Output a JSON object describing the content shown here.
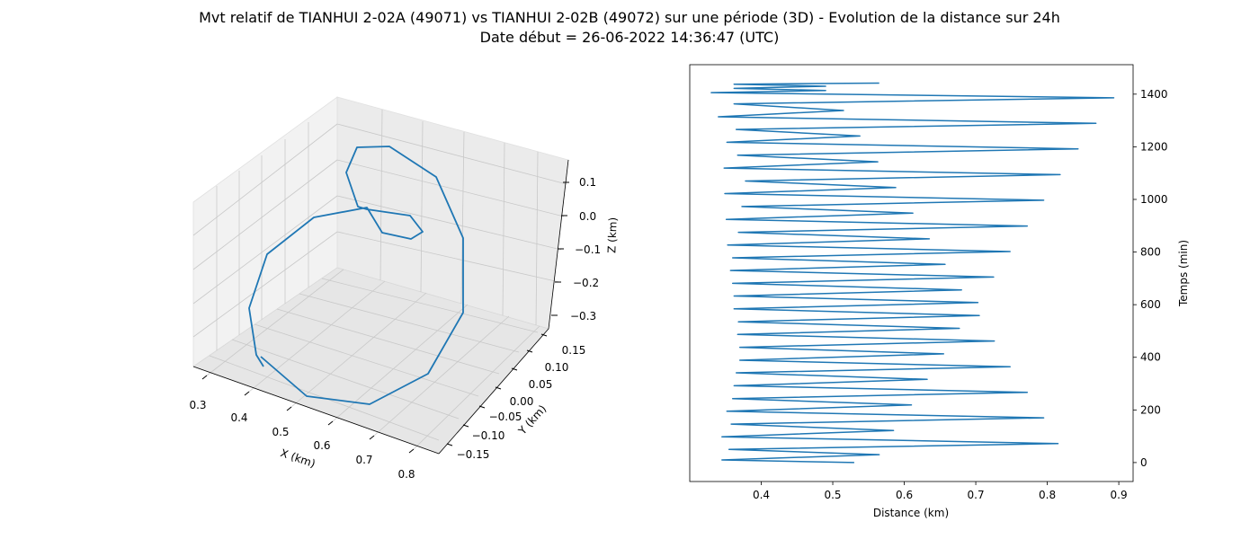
{
  "title_line1": "Mvt relatif de TIANHUI 2-02A (49071) vs TIANHUI 2-02B (49072) sur une période (3D) - Evolution de la distance sur 24h",
  "title_line2": "Date début = 26-06-2022 14:36:47 (UTC)",
  "colors": {
    "series": "#1f77b4",
    "pane": "#f2f2f2",
    "grid": "#cccccc"
  },
  "chart_data": [
    {
      "type": "line3d",
      "xlabel": "X (km)",
      "ylabel": "Y (km)",
      "zlabel": "Z (km)",
      "xticks": [
        "0.3",
        "0.4",
        "0.5",
        "0.6",
        "0.7",
        "0.8"
      ],
      "yticks": [
        "−0.15",
        "−0.10",
        "−0.05",
        "0.00",
        "0.05",
        "0.10",
        "0.15"
      ],
      "zticks": [
        "−0.3",
        "−0.2",
        "−0.1",
        "0.0",
        "0.1"
      ],
      "xlim": [
        0.3,
        0.82
      ],
      "ylim": [
        -0.17,
        0.16
      ],
      "zlim": [
        -0.34,
        0.14
      ],
      "grid": true,
      "trajectory": {
        "x": [
          0.41,
          0.4,
          0.395,
          0.4,
          0.42,
          0.47,
          0.53,
          0.55,
          0.57,
          0.58,
          0.6,
          0.64,
          0.72,
          0.78,
          0.81,
          0.78,
          0.72,
          0.65,
          0.6,
          0.585,
          0.6
        ],
        "y": [
          0.0,
          -0.05,
          -0.1,
          -0.13,
          -0.15,
          -0.16,
          -0.14,
          -0.11,
          -0.08,
          -0.02,
          0.04,
          0.09,
          0.12,
          0.1,
          0.05,
          -0.01,
          -0.05,
          -0.09,
          -0.07,
          -0.04,
          0.0
        ],
        "z": [
          -0.29,
          -0.24,
          -0.18,
          -0.1,
          -0.02,
          0.05,
          0.08,
          0.04,
          0.0,
          -0.03,
          -0.02,
          0.04,
          0.1,
          0.14,
          0.09,
          -0.01,
          -0.11,
          -0.21,
          -0.29,
          -0.25,
          -0.21
        ]
      }
    },
    {
      "type": "line",
      "xlabel": "Distance (km)",
      "ylabel": "Temps (min)",
      "xlim": [
        0.3,
        0.92
      ],
      "ylim": [
        -72,
        1512
      ],
      "xticks": [
        0.4,
        0.5,
        0.6,
        0.7,
        0.8,
        0.9
      ],
      "yticks": [
        0,
        200,
        400,
        600,
        800,
        1000,
        1200,
        1400
      ],
      "yaxis_side": "right",
      "grid": false,
      "series": [
        {
          "x": [
            0.53,
            0.345,
            0.565,
            0.355,
            0.815,
            0.345,
            0.585,
            0.358,
            0.795,
            0.352,
            0.61,
            0.36,
            0.772,
            0.362,
            0.632,
            0.365,
            0.748,
            0.37,
            0.655,
            0.37,
            0.726,
            0.367,
            0.677,
            0.368,
            0.705,
            0.362,
            0.703,
            0.362,
            0.68,
            0.36,
            0.725,
            0.357,
            0.657,
            0.36,
            0.748,
            0.353,
            0.635,
            0.368,
            0.772,
            0.351,
            0.612,
            0.373,
            0.795,
            0.349,
            0.588,
            0.378,
            0.818,
            0.348,
            0.563,
            0.367,
            0.843,
            0.352,
            0.538,
            0.365,
            0.868,
            0.34,
            0.515,
            0.362,
            0.893,
            0.33,
            0.49,
            0.362,
            0.49,
            0.362,
            0.565
          ],
          "y": [
            0,
            10,
            30,
            50,
            72,
            98,
            122,
            146,
            170,
            195,
            219,
            243,
            267,
            292,
            316,
            341,
            364,
            389,
            413,
            438,
            462,
            487,
            510,
            535,
            559,
            584,
            608,
            633,
            656,
            681,
            705,
            730,
            753,
            778,
            802,
            827,
            850,
            875,
            899,
            924,
            948,
            973,
            997,
            1022,
            1045,
            1070,
            1094,
            1119,
            1143,
            1168,
            1192,
            1217,
            1241,
            1266,
            1289,
            1314,
            1338,
            1363,
            1386,
            1406,
            1414,
            1422,
            1430,
            1438,
            1442
          ]
        }
      ]
    }
  ]
}
